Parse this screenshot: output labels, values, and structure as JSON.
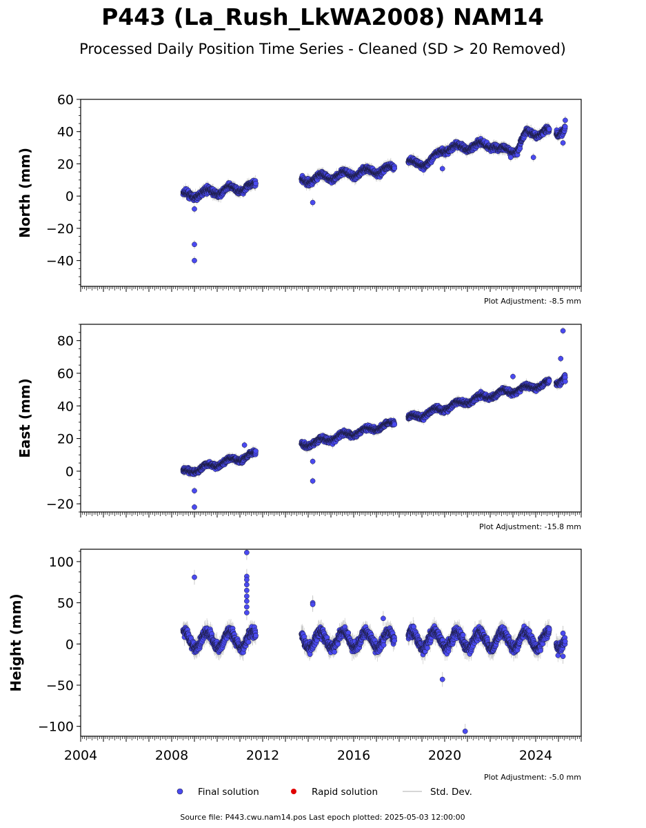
{
  "title": "P443 (La_Rush_LkWA2008) NAM14",
  "subtitle": "Processed Daily Position Time Series - Cleaned (SD > 20 Removed)",
  "colors": {
    "final": "#4a4af0",
    "rapid": "#e00000",
    "stddev": "#c8c8c8",
    "edge": "#1a1a3a"
  },
  "legend": {
    "final": "Final solution",
    "rapid": "Rapid solution",
    "stddev": "Std. Dev.",
    "placement": "bottom-center"
  },
  "footer": "Source file: P443.cwu.nam14.pos  Last epoch plotted: 2025-05-03 12:00:00",
  "chart_data": [
    {
      "type": "scatter",
      "name": "north",
      "ylabel": "North (mm)",
      "ylim": [
        -56,
        60
      ],
      "yticks": [
        60,
        40,
        20,
        0,
        -20,
        -40
      ],
      "ytick_labels": [
        "60",
        "40",
        "20",
        "0",
        "−20",
        "−40"
      ],
      "adjustment": "Plot Adjustment: -8.5 mm",
      "xlim": [
        2004,
        2026
      ],
      "sd": 1.8,
      "trend": [
        [
          2008.5,
          0
        ],
        [
          2011.6,
          6
        ],
        [
          2013.8,
          10
        ],
        [
          2017.7,
          17
        ],
        [
          2018.4,
          20
        ],
        [
          2019.4,
          21
        ],
        [
          2019.9,
          29
        ],
        [
          2021.2,
          31
        ],
        [
          2022.2,
          32
        ],
        [
          2022.4,
          28
        ],
        [
          2023.2,
          29
        ],
        [
          2023.6,
          39
        ],
        [
          2024.6,
          40
        ],
        [
          2025.0,
          40
        ],
        [
          2025.3,
          42
        ]
      ],
      "seasonal": 2,
      "outliers": [
        [
          2009.0,
          -30
        ],
        [
          2009.0,
          -40
        ],
        [
          2009.0,
          -8
        ],
        [
          2014.2,
          -4
        ],
        [
          2019.9,
          17
        ],
        [
          2022.9,
          24
        ],
        [
          2023.9,
          24
        ],
        [
          2025.2,
          33
        ],
        [
          2025.3,
          47
        ]
      ],
      "gaps": [
        [
          2011.7,
          2013.7
        ],
        [
          2017.8,
          2018.4
        ],
        [
          2024.6,
          2024.9
        ]
      ]
    },
    {
      "type": "scatter",
      "name": "east",
      "ylabel": "East (mm)",
      "ylim": [
        -25,
        90
      ],
      "yticks": [
        80,
        60,
        40,
        20,
        0,
        -20
      ],
      "ytick_labels": [
        "80",
        "60",
        "40",
        "20",
        "0",
        "−20"
      ],
      "adjustment": "Plot Adjustment: -15.8 mm",
      "xlim": [
        2004,
        2026
      ],
      "sd": 1.5,
      "trend": [
        [
          2008.5,
          -1
        ],
        [
          2011.6,
          10
        ],
        [
          2013.8,
          16
        ],
        [
          2017.7,
          29
        ],
        [
          2018.4,
          32
        ],
        [
          2020.8,
          42
        ],
        [
          2021.2,
          44
        ],
        [
          2024.6,
          54
        ],
        [
          2025.0,
          55
        ],
        [
          2025.3,
          58
        ]
      ],
      "seasonal": 1.5,
      "outliers": [
        [
          2009.0,
          -12
        ],
        [
          2009.0,
          -22
        ],
        [
          2014.2,
          -6
        ],
        [
          2014.2,
          6
        ],
        [
          2011.2,
          16
        ],
        [
          2023.0,
          58
        ],
        [
          2025.1,
          69
        ],
        [
          2025.2,
          86
        ],
        [
          2025.3,
          55
        ]
      ],
      "gaps": [
        [
          2011.7,
          2013.7
        ],
        [
          2017.8,
          2018.4
        ],
        [
          2024.6,
          2024.9
        ]
      ]
    },
    {
      "type": "scatter",
      "name": "height",
      "ylabel": "Height (mm)",
      "ylim": [
        -112,
        115
      ],
      "yticks": [
        100,
        50,
        0,
        -50,
        -100
      ],
      "ytick_labels": [
        "100",
        "50",
        "0",
        "−50",
        "−100"
      ],
      "adjustment": "Plot Adjustment: -5.0 mm",
      "xlim": [
        2004,
        2026
      ],
      "xticks": [
        2004,
        2008,
        2012,
        2016,
        2020,
        2024
      ],
      "xtick_labels": [
        "2004",
        "2008",
        "2012",
        "2016",
        "2020",
        "2024"
      ],
      "sd": 6,
      "trend": [
        [
          2008.5,
          5
        ],
        [
          2025.3,
          5
        ]
      ],
      "seasonal": 10,
      "outliers": [
        [
          2009.0,
          81
        ],
        [
          2011.3,
          111
        ],
        [
          2011.3,
          82
        ],
        [
          2011.3,
          78
        ],
        [
          2011.3,
          72
        ],
        [
          2011.3,
          65
        ],
        [
          2011.3,
          58
        ],
        [
          2011.3,
          52
        ],
        [
          2011.3,
          45
        ],
        [
          2011.3,
          38
        ],
        [
          2014.2,
          50
        ],
        [
          2014.2,
          48
        ],
        [
          2019.9,
          -43
        ],
        [
          2020.9,
          -106
        ],
        [
          2017.3,
          31
        ],
        [
          2025.2,
          -15
        ],
        [
          2025.2,
          13
        ]
      ],
      "gaps": [
        [
          2011.7,
          2013.7
        ],
        [
          2017.8,
          2018.4
        ],
        [
          2024.6,
          2024.9
        ]
      ]
    }
  ]
}
